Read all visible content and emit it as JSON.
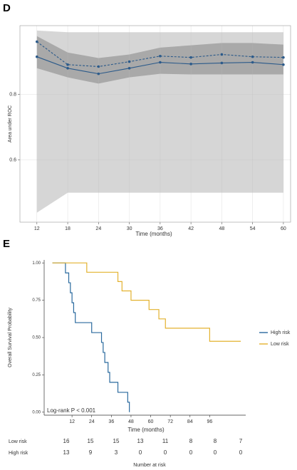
{
  "chart_data": [
    {
      "type": "line",
      "panel": "D",
      "xlabel": "Time (months)",
      "ylabel": "Area under ROC",
      "x": [
        12,
        18,
        24,
        30,
        36,
        42,
        48,
        54,
        60
      ],
      "xlim": [
        8.7,
        61.4
      ],
      "ylim": [
        0.41,
        1.01
      ],
      "xticks": [
        12,
        18,
        24,
        30,
        36,
        42,
        48,
        54,
        60
      ],
      "yticks": [
        0.6,
        0.8
      ],
      "grid": true,
      "bands": [
        {
          "color": "#d6d6d6",
          "upper": [
            0.995,
            0.99,
            0.99,
            0.99,
            0.99,
            0.99,
            0.99,
            0.99,
            0.99
          ],
          "lower": [
            0.439,
            0.5,
            0.5,
            0.5,
            0.5,
            0.5,
            0.5,
            0.5,
            0.5
          ]
        },
        {
          "color": "#a9a9a9",
          "upper": [
            0.978,
            0.928,
            0.911,
            0.922,
            0.943,
            0.95,
            0.957,
            0.957,
            0.952
          ],
          "lower": [
            0.88,
            0.852,
            0.833,
            0.852,
            0.863,
            0.861,
            0.861,
            0.861,
            0.861
          ]
        }
      ],
      "series": [
        {
          "color": "#2b5a8a",
          "style": "dashed",
          "values": [
            0.961,
            0.891,
            0.885,
            0.9,
            0.917,
            0.913,
            0.922,
            0.915,
            0.913
          ]
        },
        {
          "color": "#2b5a8a",
          "style": "solid",
          "values": [
            0.915,
            0.88,
            0.863,
            0.88,
            0.898,
            0.893,
            0.896,
            0.898,
            0.891
          ]
        }
      ]
    },
    {
      "type": "survival",
      "panel": "E",
      "xlabel": "Time (months)",
      "ylabel": "Overall Survival Probability",
      "annotation": "Log-rank P < 0.001",
      "xlim": [
        -5,
        118
      ],
      "ylim": [
        -0.02,
        1.02
      ],
      "xticks": [
        12,
        24,
        36,
        48,
        60,
        72,
        84,
        96
      ],
      "yticks": [
        {
          "value": 0,
          "label": "0.00"
        },
        {
          "value": 0.25,
          "label": "0.25"
        },
        {
          "value": 0.5,
          "label": "0.50"
        },
        {
          "value": 0.75,
          "label": "0.75"
        },
        {
          "value": 1,
          "label": "1.00"
        }
      ],
      "series": [
        {
          "name": "High risk",
          "color": "#2a6a9e",
          "times": [
            0,
            8,
            10,
            11,
            12,
            13,
            14,
            24,
            30,
            31,
            32,
            34,
            35,
            40,
            46,
            47
          ],
          "values": [
            1,
            0.933,
            0.867,
            0.8,
            0.733,
            0.667,
            0.6,
            0.533,
            0.467,
            0.4,
            0.333,
            0.267,
            0.2,
            0.133,
            0.067,
            0
          ]
        },
        {
          "name": "Low risk",
          "color": "#e3b22f",
          "times": [
            0,
            21,
            40,
            42.5,
            48,
            59,
            65,
            69,
            96,
            115
          ],
          "values": [
            1,
            0.9375,
            0.875,
            0.8125,
            0.75,
            0.6875,
            0.625,
            0.5625,
            0.475,
            0.475
          ]
        }
      ],
      "risk_table": {
        "title": "Number at risk",
        "rows": [
          {
            "label": "Low risk",
            "values": [
              16,
              15,
              15,
              13,
              11,
              8,
              8,
              7
            ]
          },
          {
            "label": "High risk",
            "values": [
              13,
              9,
              3,
              0,
              0,
              0,
              0,
              0
            ]
          }
        ]
      }
    }
  ]
}
